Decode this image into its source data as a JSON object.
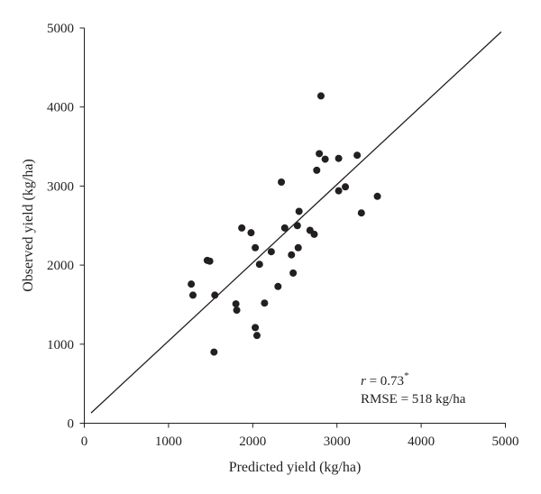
{
  "chart_data": {
    "type": "scatter",
    "xlabel": "Predicted yield (kg/ha)",
    "ylabel": "Observed yield (kg/ha)",
    "xlim": [
      0,
      5000
    ],
    "ylim": [
      0,
      5000
    ],
    "x_ticks": [
      "0",
      "1000",
      "2000",
      "3000",
      "4000",
      "5000"
    ],
    "y_ticks": [
      "0",
      "1000",
      "2000",
      "3000",
      "4000",
      "5000"
    ],
    "grid": false,
    "points": [
      {
        "x": 1270,
        "y": 1760
      },
      {
        "x": 1290,
        "y": 1620
      },
      {
        "x": 1460,
        "y": 2060
      },
      {
        "x": 1490,
        "y": 2050
      },
      {
        "x": 1550,
        "y": 1620
      },
      {
        "x": 1540,
        "y": 900
      },
      {
        "x": 1800,
        "y": 1510
      },
      {
        "x": 1810,
        "y": 1430
      },
      {
        "x": 1870,
        "y": 2470
      },
      {
        "x": 1980,
        "y": 2410
      },
      {
        "x": 2030,
        "y": 2220
      },
      {
        "x": 2030,
        "y": 1210
      },
      {
        "x": 2050,
        "y": 1110
      },
      {
        "x": 2080,
        "y": 2010
      },
      {
        "x": 2140,
        "y": 1520
      },
      {
        "x": 2220,
        "y": 2170
      },
      {
        "x": 2300,
        "y": 1730
      },
      {
        "x": 2340,
        "y": 3050
      },
      {
        "x": 2380,
        "y": 2470
      },
      {
        "x": 2460,
        "y": 2130
      },
      {
        "x": 2480,
        "y": 1900
      },
      {
        "x": 2530,
        "y": 2500
      },
      {
        "x": 2540,
        "y": 2220
      },
      {
        "x": 2550,
        "y": 2680
      },
      {
        "x": 2680,
        "y": 2440
      },
      {
        "x": 2730,
        "y": 2390
      },
      {
        "x": 2760,
        "y": 3200
      },
      {
        "x": 2790,
        "y": 3410
      },
      {
        "x": 2810,
        "y": 4140
      },
      {
        "x": 2860,
        "y": 3340
      },
      {
        "x": 3020,
        "y": 2940
      },
      {
        "x": 3020,
        "y": 3350
      },
      {
        "x": 3100,
        "y": 2990
      },
      {
        "x": 3240,
        "y": 3390
      },
      {
        "x": 3290,
        "y": 2660
      },
      {
        "x": 3480,
        "y": 2870
      }
    ],
    "fit_line": {
      "x": [
        80,
        4950
      ],
      "y": [
        130,
        4950
      ]
    },
    "annotations": {
      "r_symbol": "r",
      "r_value": " = 0.73",
      "r_significance": "*",
      "rmse": "RMSE = 518 kg/ha"
    }
  }
}
